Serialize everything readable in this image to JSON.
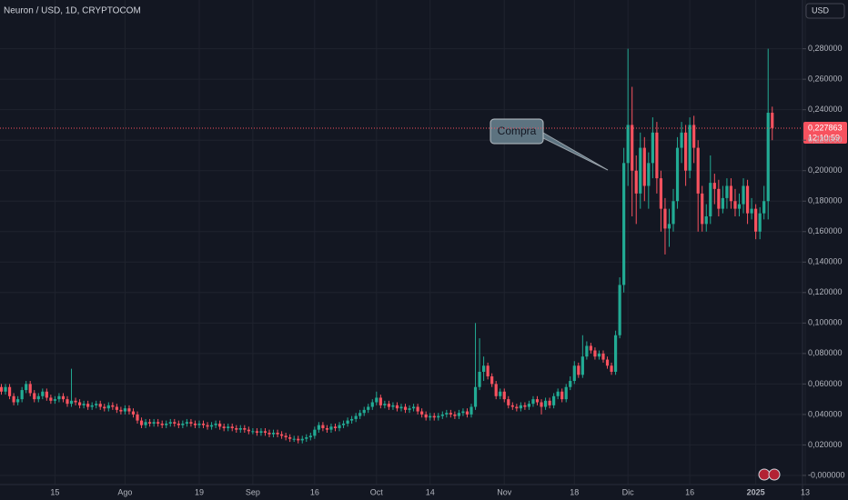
{
  "chart_data": {
    "type": "candlestick",
    "title": "Neuron / USD, 1D, CRYPTOCOM",
    "currency": "USD",
    "annotation": "Compra",
    "last_price": {
      "value": 0.227863,
      "label": "0,227863"
    },
    "countdown": "12:10:59",
    "up_color": "#22ab94",
    "down_color": "#f7525f",
    "grid": true,
    "ylim": [
      -0.006,
      0.312
    ],
    "yticks": [
      {
        "value": 0,
        "label": "-0,000000"
      },
      {
        "value": 0.02,
        "label": "0,020000"
      },
      {
        "value": 0.04,
        "label": "0,040000"
      },
      {
        "value": 0.06,
        "label": "0,060000"
      },
      {
        "value": 0.08,
        "label": "0,080000"
      },
      {
        "value": 0.1,
        "label": "0,100000"
      },
      {
        "value": 0.12,
        "label": "0,120000"
      },
      {
        "value": 0.14,
        "label": "0,140000"
      },
      {
        "value": 0.16,
        "label": "0,160000"
      },
      {
        "value": 0.18,
        "label": "0,180000"
      },
      {
        "value": 0.2,
        "label": "0,200000"
      },
      {
        "value": 0.22,
        "label": "0,220000"
      },
      {
        "value": 0.24,
        "label": "0,240000"
      },
      {
        "value": 0.26,
        "label": "0,260000"
      },
      {
        "value": 0.28,
        "label": "0,280000"
      }
    ],
    "categories": [
      null,
      null,
      null,
      null,
      null,
      null,
      null,
      null,
      null,
      null,
      null,
      null,
      null,
      "15",
      null,
      null,
      null,
      null,
      null,
      null,
      null,
      null,
      null,
      null,
      null,
      null,
      null,
      null,
      null,
      null,
      "Ago",
      null,
      null,
      null,
      null,
      null,
      null,
      null,
      null,
      null,
      null,
      null,
      null,
      null,
      null,
      null,
      null,
      null,
      "19",
      null,
      null,
      null,
      null,
      null,
      null,
      null,
      null,
      null,
      null,
      null,
      null,
      "Sep",
      null,
      null,
      null,
      null,
      null,
      null,
      null,
      null,
      null,
      null,
      null,
      null,
      null,
      null,
      "16",
      null,
      null,
      null,
      null,
      null,
      null,
      null,
      null,
      null,
      null,
      null,
      null,
      null,
      null,
      "Oct",
      null,
      null,
      null,
      null,
      null,
      null,
      null,
      null,
      null,
      null,
      null,
      null,
      "14",
      null,
      null,
      null,
      null,
      null,
      null,
      null,
      null,
      null,
      null,
      null,
      null,
      null,
      null,
      null,
      null,
      null,
      "Nov",
      null,
      null,
      null,
      null,
      null,
      null,
      null,
      null,
      null,
      null,
      null,
      null,
      null,
      null,
      null,
      null,
      "18",
      null,
      null,
      null,
      null,
      null,
      null,
      null,
      null,
      null,
      null,
      null,
      null,
      "Dic",
      null,
      null,
      null,
      null,
      null,
      null,
      null,
      null,
      null,
      null,
      null,
      null,
      null,
      null,
      "16",
      null,
      null,
      null,
      null,
      null,
      null,
      null,
      null,
      null,
      null,
      null,
      null,
      null,
      null,
      null,
      "2025",
      null,
      null,
      null,
      null,
      null,
      null,
      null,
      null,
      null,
      null,
      null,
      "13"
    ],
    "open": [
      0.058,
      0.055,
      0.058,
      0.052,
      0.048,
      0.05,
      0.056,
      0.06,
      0.054,
      0.05,
      0.052,
      0.055,
      0.051,
      0.049,
      0.05,
      0.052,
      0.05,
      0.047,
      0.049,
      0.048,
      0.046,
      0.047,
      0.045,
      0.046,
      0.047,
      0.045,
      0.044,
      0.046,
      0.045,
      0.043,
      0.042,
      0.044,
      0.042,
      0.04,
      0.036,
      0.033,
      0.035,
      0.034,
      0.035,
      0.034,
      0.033,
      0.034,
      0.035,
      0.034,
      0.033,
      0.034,
      0.035,
      0.034,
      0.033,
      0.034,
      0.033,
      0.032,
      0.033,
      0.034,
      0.032,
      0.031,
      0.032,
      0.031,
      0.03,
      0.031,
      0.03,
      0.029,
      0.029,
      0.028,
      0.029,
      0.028,
      0.027,
      0.028,
      0.027,
      0.026,
      0.025,
      0.024,
      0.024,
      0.023,
      0.024,
      0.025,
      0.026,
      0.03,
      0.033,
      0.031,
      0.03,
      0.032,
      0.031,
      0.033,
      0.034,
      0.036,
      0.037,
      0.039,
      0.041,
      0.043,
      0.045,
      0.048,
      0.051,
      0.046,
      0.047,
      0.045,
      0.046,
      0.044,
      0.045,
      0.043,
      0.044,
      0.045,
      0.042,
      0.04,
      0.038,
      0.039,
      0.038,
      0.039,
      0.04,
      0.041,
      0.04,
      0.039,
      0.041,
      0.042,
      0.04,
      0.045,
      0.058,
      0.068,
      0.072,
      0.065,
      0.06,
      0.052,
      0.055,
      0.05,
      0.046,
      0.045,
      0.044,
      0.046,
      0.045,
      0.047,
      0.05,
      0.048,
      0.045,
      0.049,
      0.046,
      0.052,
      0.055,
      0.05,
      0.058,
      0.062,
      0.072,
      0.066,
      0.078,
      0.085,
      0.082,
      0.078,
      0.08,
      0.076,
      0.072,
      0.068,
      0.092,
      0.125,
      0.205,
      0.23,
      0.2,
      0.185,
      0.215,
      0.19,
      0.205,
      0.225,
      0.195,
      0.175,
      0.162,
      0.165,
      0.18,
      0.215,
      0.225,
      0.2,
      0.23,
      0.215,
      0.185,
      0.165,
      0.17,
      0.192,
      0.188,
      0.175,
      0.182,
      0.19,
      0.18,
      0.175,
      0.178,
      0.19,
      0.172,
      0.175,
      0.16,
      0.172,
      0.18,
      0.238,
      null,
      null,
      null,
      null,
      null,
      null,
      null,
      null
    ],
    "high": [
      0.06,
      0.06,
      0.06,
      0.054,
      0.052,
      0.058,
      0.062,
      0.062,
      0.056,
      0.054,
      0.057,
      0.057,
      0.053,
      0.052,
      0.054,
      0.054,
      0.052,
      0.07,
      0.051,
      0.05,
      0.049,
      0.049,
      0.048,
      0.049,
      0.049,
      0.047,
      0.048,
      0.048,
      0.047,
      0.045,
      0.046,
      0.046,
      0.044,
      0.042,
      0.038,
      0.037,
      0.037,
      0.037,
      0.037,
      0.036,
      0.036,
      0.037,
      0.037,
      0.036,
      0.036,
      0.037,
      0.037,
      0.036,
      0.036,
      0.036,
      0.035,
      0.035,
      0.036,
      0.036,
      0.034,
      0.034,
      0.034,
      0.033,
      0.033,
      0.033,
      0.032,
      0.031,
      0.031,
      0.031,
      0.031,
      0.03,
      0.03,
      0.03,
      0.029,
      0.028,
      0.027,
      0.026,
      0.026,
      0.026,
      0.027,
      0.028,
      0.032,
      0.035,
      0.035,
      0.033,
      0.034,
      0.034,
      0.035,
      0.036,
      0.038,
      0.039,
      0.041,
      0.043,
      0.045,
      0.047,
      0.05,
      0.055,
      0.053,
      0.049,
      0.049,
      0.048,
      0.048,
      0.047,
      0.047,
      0.046,
      0.047,
      0.047,
      0.044,
      0.042,
      0.041,
      0.041,
      0.041,
      0.042,
      0.043,
      0.043,
      0.042,
      0.043,
      0.044,
      0.044,
      0.047,
      0.1,
      0.09,
      0.078,
      0.074,
      0.067,
      0.062,
      0.057,
      0.057,
      0.052,
      0.048,
      0.047,
      0.048,
      0.048,
      0.049,
      0.052,
      0.052,
      0.05,
      0.051,
      0.051,
      0.054,
      0.057,
      0.057,
      0.06,
      0.065,
      0.075,
      0.074,
      0.092,
      0.088,
      0.087,
      0.084,
      0.082,
      0.082,
      0.078,
      0.074,
      0.095,
      0.13,
      0.215,
      0.28,
      0.255,
      0.21,
      0.225,
      0.222,
      0.212,
      0.235,
      0.232,
      0.2,
      0.182,
      0.175,
      0.188,
      0.222,
      0.232,
      0.23,
      0.235,
      0.236,
      0.22,
      0.19,
      0.178,
      0.21,
      0.198,
      0.194,
      0.19,
      0.195,
      0.195,
      0.188,
      0.185,
      0.195,
      0.194,
      0.182,
      0.178,
      0.176,
      0.19,
      0.28,
      0.242,
      null,
      null,
      null,
      null,
      null,
      null,
      null,
      null
    ],
    "low": [
      0.053,
      0.053,
      0.05,
      0.046,
      0.046,
      0.048,
      0.054,
      0.052,
      0.048,
      0.048,
      0.05,
      0.049,
      0.047,
      0.047,
      0.048,
      0.048,
      0.045,
      0.045,
      0.046,
      0.044,
      0.044,
      0.043,
      0.043,
      0.044,
      0.043,
      0.042,
      0.042,
      0.043,
      0.041,
      0.04,
      0.04,
      0.04,
      0.038,
      0.034,
      0.031,
      0.031,
      0.032,
      0.032,
      0.032,
      0.031,
      0.031,
      0.032,
      0.032,
      0.031,
      0.031,
      0.032,
      0.032,
      0.031,
      0.031,
      0.031,
      0.03,
      0.03,
      0.031,
      0.03,
      0.029,
      0.029,
      0.029,
      0.028,
      0.028,
      0.028,
      0.027,
      0.027,
      0.026,
      0.026,
      0.026,
      0.025,
      0.025,
      0.025,
      0.024,
      0.023,
      0.022,
      0.022,
      0.021,
      0.021,
      0.022,
      0.023,
      0.024,
      0.028,
      0.029,
      0.028,
      0.028,
      0.029,
      0.029,
      0.031,
      0.032,
      0.034,
      0.035,
      0.037,
      0.039,
      0.041,
      0.043,
      0.046,
      0.044,
      0.044,
      0.043,
      0.043,
      0.042,
      0.042,
      0.041,
      0.041,
      0.042,
      0.04,
      0.038,
      0.036,
      0.036,
      0.036,
      0.036,
      0.037,
      0.038,
      0.038,
      0.037,
      0.037,
      0.039,
      0.038,
      0.038,
      0.043,
      0.056,
      0.062,
      0.063,
      0.058,
      0.05,
      0.05,
      0.048,
      0.044,
      0.043,
      0.042,
      0.042,
      0.043,
      0.043,
      0.045,
      0.046,
      0.04,
      0.043,
      0.044,
      0.044,
      0.05,
      0.048,
      0.048,
      0.056,
      0.06,
      0.064,
      0.064,
      0.076,
      0.08,
      0.076,
      0.076,
      0.074,
      0.07,
      0.066,
      0.066,
      0.09,
      0.12,
      0.19,
      0.17,
      0.165,
      0.175,
      0.18,
      0.175,
      0.195,
      0.185,
      0.16,
      0.145,
      0.15,
      0.16,
      0.175,
      0.205,
      0.19,
      0.195,
      0.205,
      0.16,
      0.16,
      0.16,
      0.165,
      0.178,
      0.17,
      0.172,
      0.175,
      0.175,
      0.17,
      0.17,
      0.172,
      0.165,
      0.168,
      0.155,
      0.155,
      0.168,
      0.168,
      0.22,
      null,
      null,
      null,
      null,
      null,
      null,
      null,
      null
    ],
    "close": [
      0.055,
      0.058,
      0.052,
      0.048,
      0.05,
      0.056,
      0.06,
      0.054,
      0.05,
      0.052,
      0.055,
      0.051,
      0.049,
      0.05,
      0.052,
      0.05,
      0.047,
      0.049,
      0.048,
      0.046,
      0.047,
      0.045,
      0.046,
      0.047,
      0.045,
      0.044,
      0.046,
      0.045,
      0.043,
      0.042,
      0.044,
      0.042,
      0.04,
      0.036,
      0.033,
      0.035,
      0.034,
      0.035,
      0.034,
      0.033,
      0.034,
      0.035,
      0.034,
      0.033,
      0.034,
      0.035,
      0.034,
      0.033,
      0.034,
      0.033,
      0.032,
      0.033,
      0.034,
      0.032,
      0.031,
      0.032,
      0.031,
      0.03,
      0.031,
      0.03,
      0.029,
      0.029,
      0.028,
      0.029,
      0.028,
      0.027,
      0.028,
      0.027,
      0.026,
      0.025,
      0.024,
      0.024,
      0.023,
      0.024,
      0.025,
      0.026,
      0.03,
      0.033,
      0.031,
      0.03,
      0.032,
      0.031,
      0.033,
      0.034,
      0.036,
      0.037,
      0.039,
      0.041,
      0.043,
      0.045,
      0.048,
      0.051,
      0.046,
      0.047,
      0.045,
      0.046,
      0.044,
      0.045,
      0.043,
      0.044,
      0.045,
      0.042,
      0.04,
      0.038,
      0.039,
      0.038,
      0.039,
      0.04,
      0.041,
      0.04,
      0.039,
      0.041,
      0.042,
      0.04,
      0.045,
      0.058,
      0.068,
      0.072,
      0.065,
      0.06,
      0.052,
      0.055,
      0.05,
      0.046,
      0.045,
      0.044,
      0.046,
      0.045,
      0.047,
      0.05,
      0.048,
      0.045,
      0.049,
      0.046,
      0.052,
      0.055,
      0.05,
      0.058,
      0.062,
      0.072,
      0.066,
      0.078,
      0.085,
      0.082,
      0.078,
      0.08,
      0.076,
      0.072,
      0.068,
      0.092,
      0.125,
      0.205,
      0.23,
      0.2,
      0.185,
      0.215,
      0.19,
      0.205,
      0.225,
      0.195,
      0.175,
      0.162,
      0.165,
      0.18,
      0.215,
      0.225,
      0.2,
      0.23,
      0.215,
      0.185,
      0.165,
      0.17,
      0.192,
      0.188,
      0.175,
      0.182,
      0.19,
      0.18,
      0.175,
      0.178,
      0.19,
      0.172,
      0.175,
      0.16,
      0.172,
      0.18,
      0.238,
      0.228,
      null,
      null,
      null,
      null,
      null,
      null,
      null,
      null
    ]
  }
}
